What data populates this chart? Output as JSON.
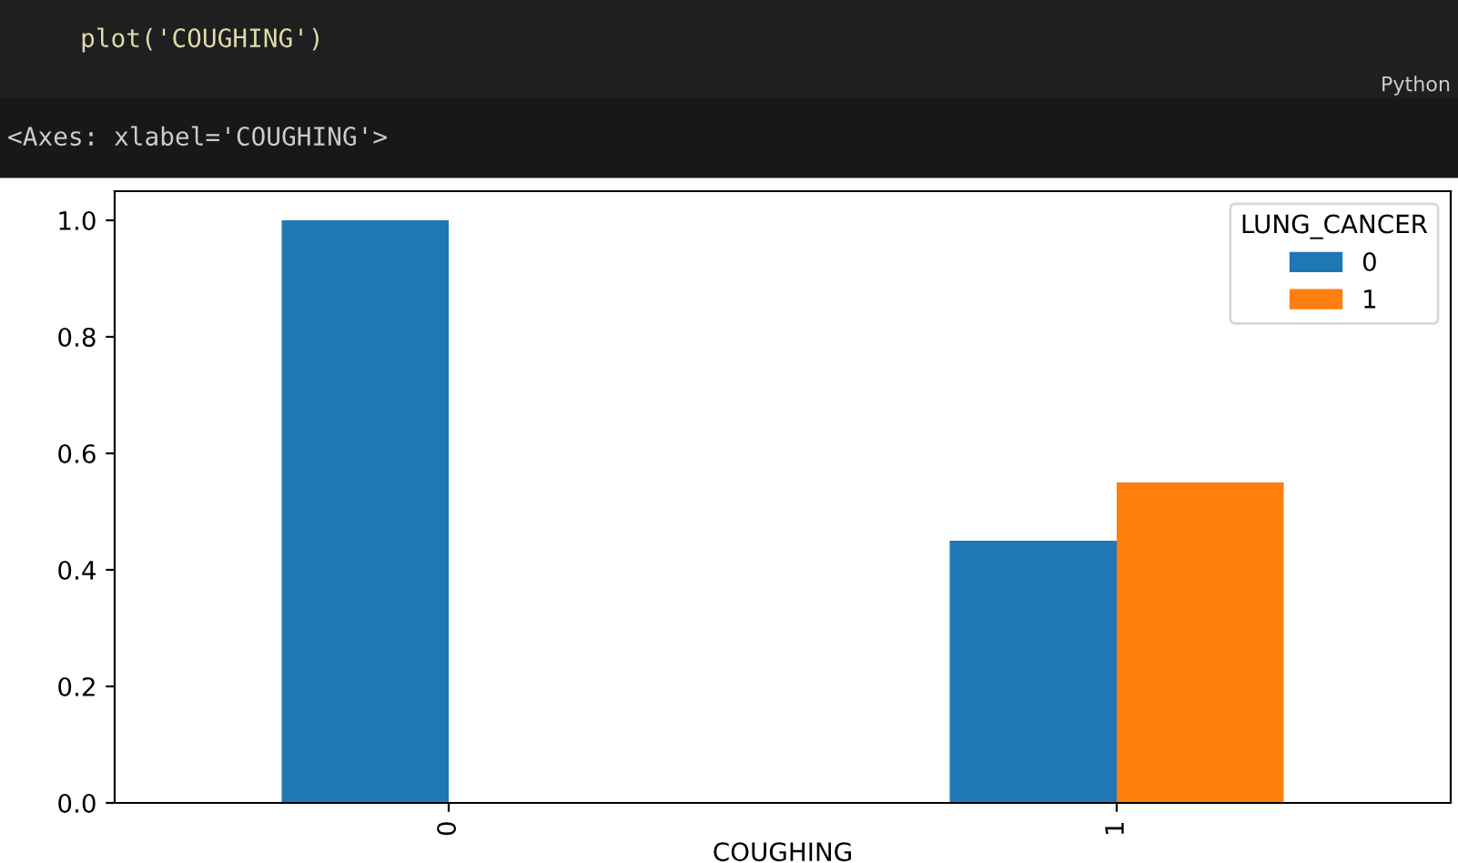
{
  "chart_data": {
    "type": "bar",
    "xlabel": "COUGHING",
    "legend_title": "LUNG_CANCER",
    "categories": [
      "0",
      "1"
    ],
    "series": [
      {
        "name": "0",
        "color": "#1f77b4",
        "values": [
          1.0,
          0.45
        ]
      },
      {
        "name": "1",
        "color": "#ff7f0e",
        "values": [
          0.0,
          0.55
        ]
      }
    ],
    "ylim": [
      0,
      1.05
    ],
    "yticks": [
      {
        "value": 0,
        "label": "0.0"
      },
      {
        "value": 0.2,
        "label": "0.2"
      },
      {
        "value": 0.4,
        "label": "0.4"
      },
      {
        "value": 0.6,
        "label": "0.6"
      },
      {
        "value": 0.8,
        "label": "0.8"
      },
      {
        "value": 1.0,
        "label": "1.0"
      }
    ],
    "legend": "top right",
    "grid": false,
    "annotations": [
      "plot('COUGHING')",
      "Python",
      "<Axes: xlabel='COUGHING'>"
    ]
  }
}
